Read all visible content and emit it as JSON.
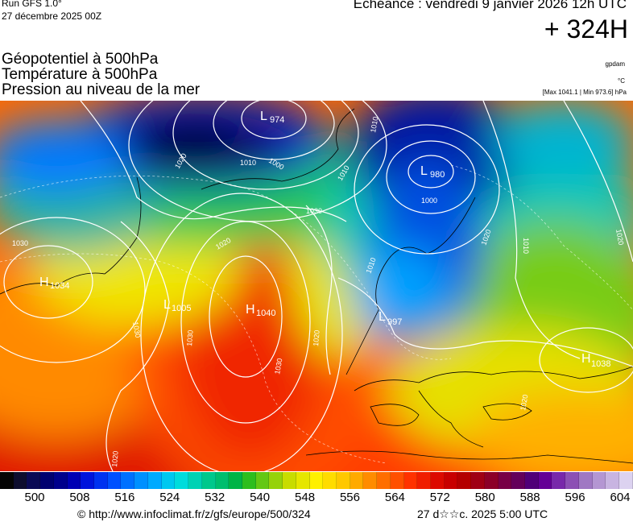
{
  "header": {
    "run_title": "Run GFS 1.0°",
    "run_date": "27 décembre 2025 00Z",
    "echeance": "Echéance : vendredi 9 janvier 2026 12h UTC",
    "lead_time": "+ 324H"
  },
  "parameters": [
    "Géopotentiel à 500hPa",
    "Température à 500hPa",
    "Pression au niveau de la mer"
  ],
  "units": {
    "geopotential": "gpdam",
    "temperature": "°C",
    "pressure_range": "[Max 1041.1 | Min 973.6] hPa"
  },
  "map": {
    "pressure_centers": [
      {
        "type": "L",
        "value": "974"
      },
      {
        "type": "L",
        "value": "980"
      },
      {
        "type": "H",
        "value": "1040"
      },
      {
        "type": "L",
        "value": "1005"
      },
      {
        "type": "L",
        "value": "997"
      },
      {
        "type": "H",
        "value": "1034"
      },
      {
        "type": "H",
        "value": "1038"
      }
    ],
    "isobar_labels": [
      "1020",
      "1010",
      "1000",
      "1030",
      "1030",
      "1020",
      "1010",
      "1010",
      "1000",
      "1020",
      "1010",
      "1030",
      "1030",
      "1020",
      "1030",
      "1020",
      "1020",
      "1010",
      "1020"
    ]
  },
  "colorbar": {
    "ticks": [
      "500",
      "508",
      "516",
      "524",
      "532",
      "540",
      "548",
      "556",
      "564",
      "572",
      "580",
      "588",
      "596",
      "604"
    ],
    "colors": [
      "#050505",
      "#0d0d2e",
      "#0a0a55",
      "#000070",
      "#00008c",
      "#0000b4",
      "#0014dc",
      "#0032f0",
      "#0050ff",
      "#0070ff",
      "#0090ff",
      "#00aaff",
      "#00c8f0",
      "#00dcdc",
      "#00d2b4",
      "#00c88c",
      "#00be6e",
      "#00b446",
      "#2dbe1e",
      "#64c814",
      "#96d20a",
      "#c8dc00",
      "#e6e600",
      "#fff000",
      "#ffdc00",
      "#ffc800",
      "#ffaa00",
      "#ff8c00",
      "#ff6e00",
      "#ff5000",
      "#ff3200",
      "#f01e00",
      "#dc0a00",
      "#c80000",
      "#b40000",
      "#a00014",
      "#8c0028",
      "#780046",
      "#64005a",
      "#500078",
      "#640096",
      "#7828aa",
      "#8c50b4",
      "#a078c3",
      "#b496d2",
      "#c8b4e1",
      "#dcd2f0"
    ]
  },
  "footer": {
    "copyright": "© http://www.infoclimat.fr/z/gfs/europe/500/324",
    "timestamp": "27 d☆☆c. 2025  5:00 UTC"
  }
}
